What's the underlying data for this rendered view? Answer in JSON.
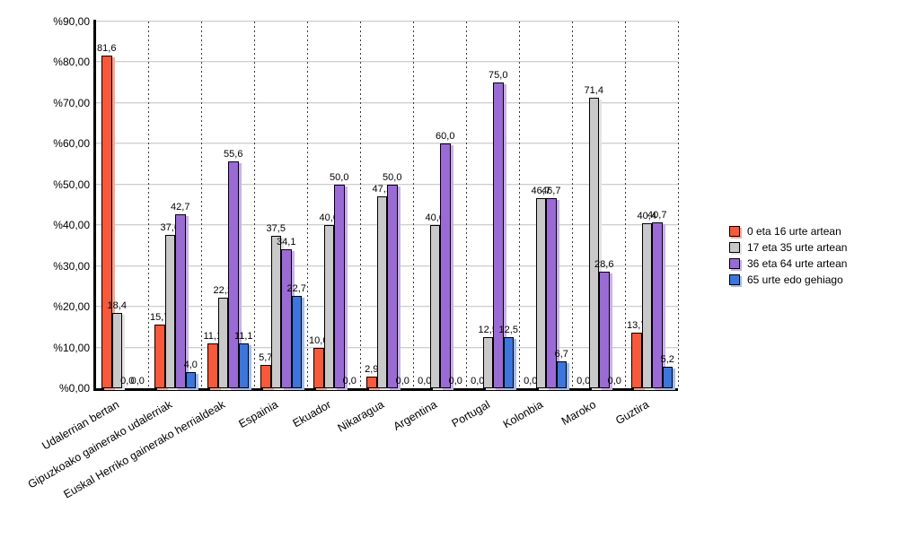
{
  "chart": {
    "background_color": "#ffffff",
    "axis_color": "#000000",
    "gridline_color": "#d4d4d4",
    "separator_color": "#3a3a3a",
    "value_label_color": "#000000"
  },
  "chart_data": {
    "type": "bar",
    "title": "",
    "xlabel": "",
    "ylabel": "",
    "ylim": [
      0,
      90
    ],
    "y_tick_step": 10,
    "y_tick_labels": [
      "%0,00",
      "%10,00",
      "%20,00",
      "%30,00",
      "%40,00",
      "%50,00",
      "%60,00",
      "%70,00",
      "%80,00",
      "%90,00"
    ],
    "grid": true,
    "category_gridlines": "dotted-vertical",
    "legend_position": "right",
    "categories": [
      "Udalerrian bertan",
      "Gipuzkoako gainerako udalerriak",
      "Euskal Herriko gainerako herrialdeak",
      "Espainia",
      "Ekuador",
      "Nikaragua",
      "Argentina",
      "Portugal",
      "Kolonbia",
      "Maroko",
      "Guztira"
    ],
    "series": [
      {
        "name": "0 eta 16 urte artean",
        "color": "#f8593b",
        "shadow_color": "#f9a694",
        "values": [
          81.6,
          15.7,
          11.1,
          5.7,
          10.0,
          2.9,
          0.0,
          0.0,
          0.0,
          0.0,
          13.7
        ],
        "labels": [
          "81,6",
          "15,7",
          "11,1",
          "5,7",
          "10,0",
          "2,9",
          "0,0",
          "0,0",
          "0,0",
          "0,0",
          "13,7"
        ]
      },
      {
        "name": "17 eta 35 urte artean",
        "color": "#c9c9c9",
        "shadow_color": "#e4e4e4",
        "values": [
          18.4,
          37.6,
          22.2,
          37.5,
          40.0,
          47.1,
          40.0,
          12.5,
          46.7,
          71.4,
          40.4
        ],
        "labels": [
          "18,4",
          "37,6",
          "22,2",
          "37,5",
          "40,0",
          "47,1",
          "40,0",
          "12,5",
          "46,7",
          "71,4",
          "40,4"
        ]
      },
      {
        "name": "36 eta 64 urte artean",
        "color": "#9a6bd4",
        "shadow_color": "#c9b0e9",
        "values": [
          0.0,
          42.7,
          55.6,
          34.1,
          50.0,
          50.0,
          60.0,
          75.0,
          46.7,
          28.6,
          40.7
        ],
        "labels": [
          "0,0",
          "42,7",
          "55,6",
          "34,1",
          "50,0",
          "50,0",
          "60,0",
          "75,0",
          "46,7",
          "28,6",
          "40,7"
        ]
      },
      {
        "name": "65 urte edo gehiago",
        "color": "#3c75db",
        "shadow_color": "#a0bdef",
        "values": [
          0.0,
          4.0,
          11.1,
          22.7,
          0.0,
          0.0,
          0.0,
          12.5,
          6.7,
          0.0,
          5.2
        ],
        "labels": [
          "0,0",
          "4,0",
          "11,1",
          "22,7",
          "0,0",
          "0,0",
          "0,0",
          "12,5",
          "6,7",
          "0,0",
          "5,2"
        ]
      }
    ]
  }
}
